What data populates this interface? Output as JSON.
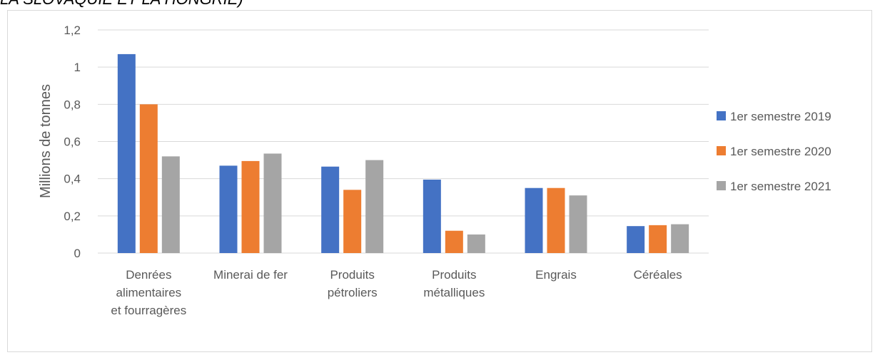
{
  "header": {
    "text": "LA SLOVAQUIE ET LA HONGRIE)"
  },
  "chart_data": {
    "type": "bar",
    "title": "",
    "ylabel": "Millions de tonnes",
    "xlabel": "",
    "ylim": [
      0,
      1.2
    ],
    "yticks": [
      0,
      0.2,
      0.4,
      0.6,
      0.8,
      1,
      1.2
    ],
    "ytick_labels": [
      "0",
      "0,2",
      "0,4",
      "0,6",
      "0,8",
      "1",
      "1,2"
    ],
    "categories": [
      [
        "Denrées",
        "alimentaires",
        "et fourragères"
      ],
      [
        "Minerai de fer"
      ],
      [
        "Produits",
        "pétroliers"
      ],
      [
        "Produits",
        "métalliques"
      ],
      [
        "Engrais"
      ],
      [
        "Céréales"
      ]
    ],
    "series": [
      {
        "name": "1er semestre 2019",
        "color": "#4472c4",
        "values": [
          1.07,
          0.47,
          0.465,
          0.395,
          0.35,
          0.145
        ]
      },
      {
        "name": "1er semestre 2020",
        "color": "#ed7d31",
        "values": [
          0.8,
          0.495,
          0.34,
          0.12,
          0.35,
          0.15
        ]
      },
      {
        "name": "1er semestre 2021",
        "color": "#a5a5a5",
        "values": [
          0.52,
          0.535,
          0.5,
          0.1,
          0.31,
          0.155
        ]
      }
    ],
    "grid": true,
    "legend_position": "right"
  }
}
